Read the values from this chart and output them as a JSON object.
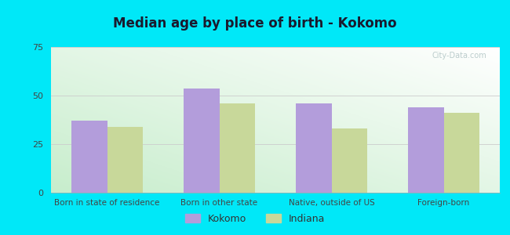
{
  "title": "Median age by place of birth - Kokomo",
  "categories": [
    "Born in state of residence",
    "Born in other state",
    "Native, outside of US",
    "Foreign-born"
  ],
  "kokomo_values": [
    37.0,
    53.5,
    46.0,
    44.0
  ],
  "indiana_values": [
    34.0,
    46.0,
    33.0,
    41.0
  ],
  "bar_color_kokomo": "#b39ddb",
  "bar_color_indiana": "#c8d89a",
  "ylim": [
    0,
    75
  ],
  "yticks": [
    0,
    25,
    50,
    75
  ],
  "background_color_outer": "#00e8f8",
  "title_fontsize": 12,
  "legend_label_kokomo": "Kokomo",
  "legend_label_indiana": "Indiana",
  "bar_width": 0.32,
  "grid_color": "#cccccc",
  "title_color": "#1a1a2e"
}
